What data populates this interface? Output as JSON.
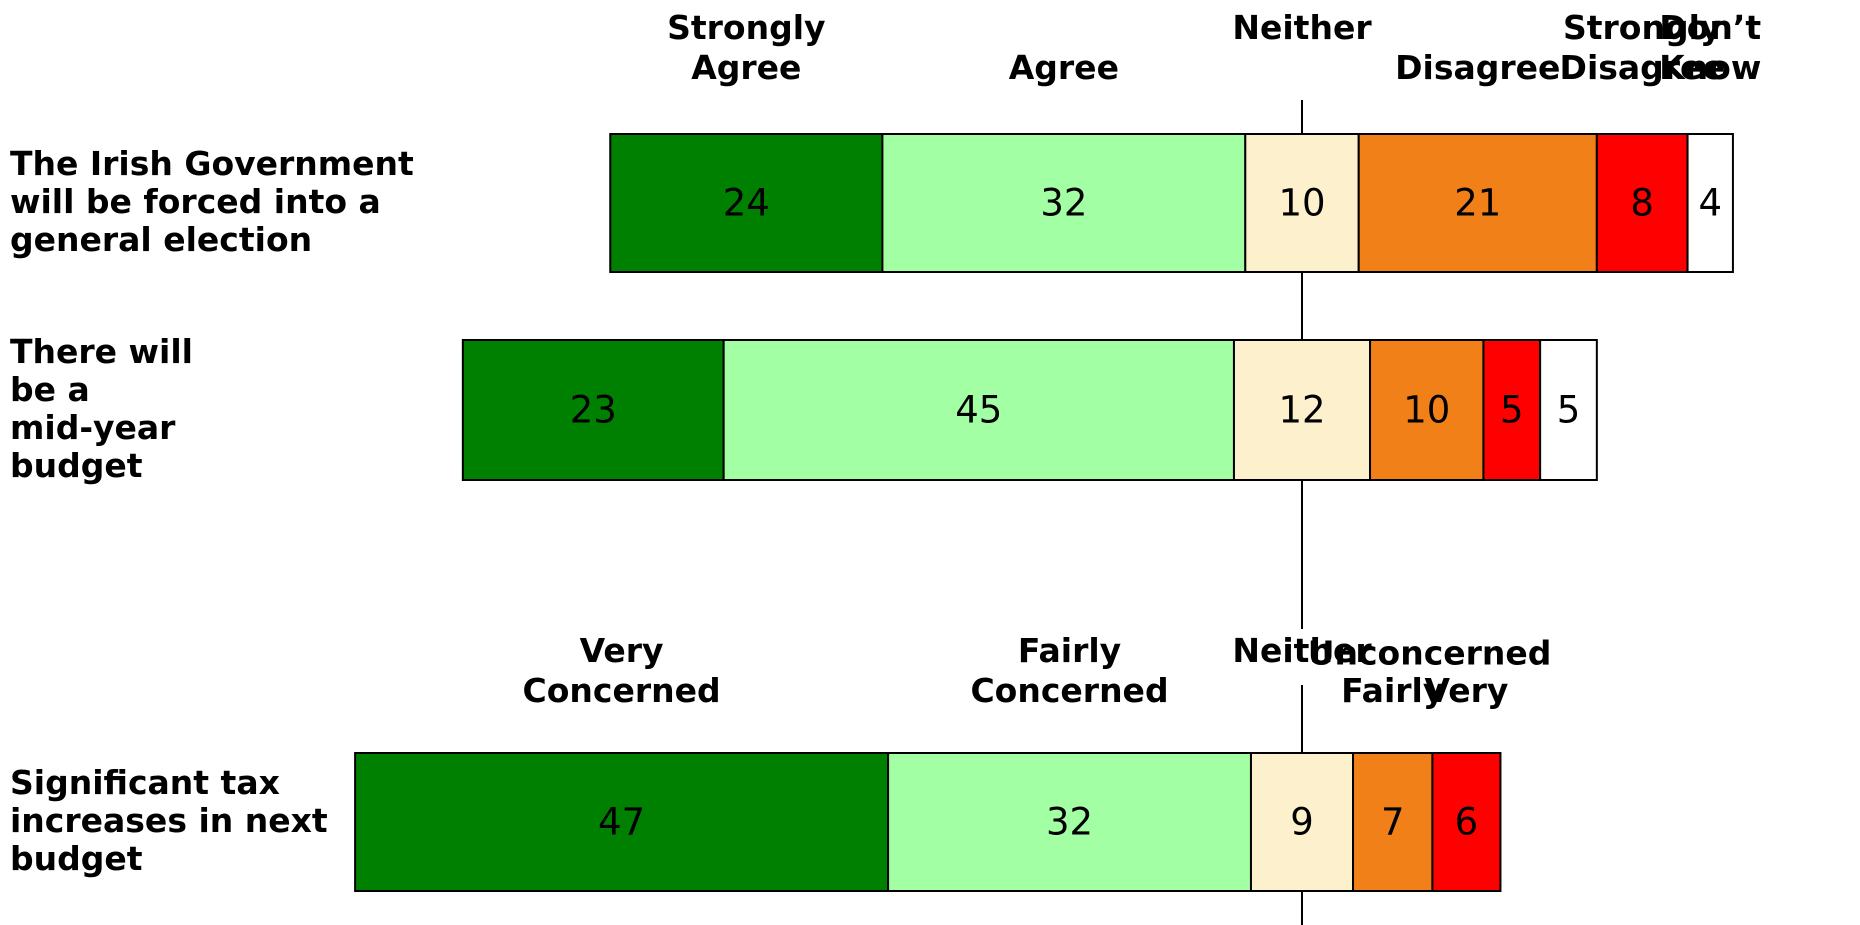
{
  "chart_data": {
    "type": "diverging_bar",
    "groups": [
      {
        "categories": [
          "The Irish Government will be forced into a general election",
          "There will be a mid-year budget"
        ],
        "series": [
          {
            "name": "Strongly Agree",
            "color": "#008000",
            "values": [
              24,
              23
            ]
          },
          {
            "name": "Agree",
            "color": "#a3ffa3",
            "values": [
              32,
              45
            ]
          },
          {
            "name": "Neither",
            "color": "#fdf0cc",
            "values": [
              10,
              12
            ]
          },
          {
            "name": "Disagree",
            "color": "#f28018",
            "values": [
              21,
              10
            ]
          },
          {
            "name": "Strongly Disagree",
            "color": "#ff0000",
            "values": [
              8,
              5
            ]
          },
          {
            "name": "Don’t Know",
            "color": "#ffffff",
            "values": [
              4,
              5
            ]
          }
        ]
      },
      {
        "categories": [
          "Significant tax increases in next budget"
        ],
        "subheading": "Unconcerned",
        "series": [
          {
            "name": "Very Concerned",
            "color": "#008000",
            "values": [
              47
            ]
          },
          {
            "name": "Fairly Concerned",
            "color": "#a3ffa3",
            "values": [
              32
            ]
          },
          {
            "name": "Neither",
            "color": "#fdf0cc",
            "values": [
              9
            ]
          },
          {
            "name": "Fairly",
            "color": "#f28018",
            "values": [
              7
            ]
          },
          {
            "name": "Very",
            "color": "#ff0000",
            "values": [
              6
            ]
          }
        ]
      }
    ]
  }
}
